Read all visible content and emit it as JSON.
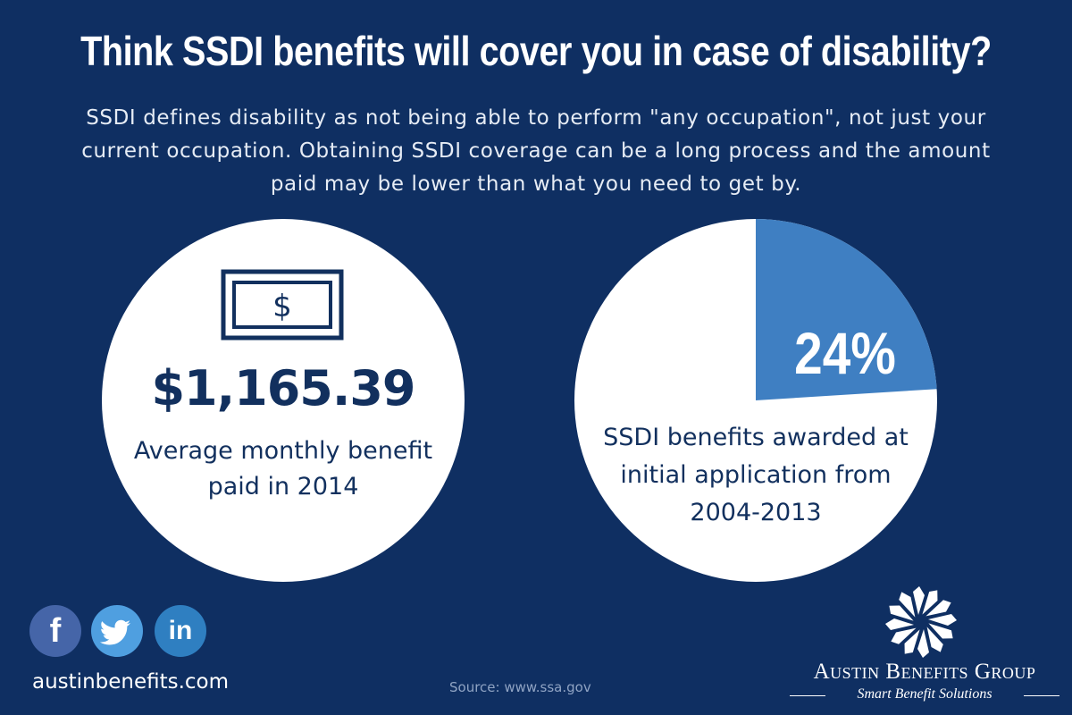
{
  "headline": "Think SSDI benefits will cover you in case of disability?",
  "subtext": "SSDI defines disability as not being able to perform \"any occupation\", not just your current occupation. Obtaining SSDI coverage can be a long process and the amount paid may be lower than what you need to get by.",
  "left_stat": {
    "icon": "dollar-bill-icon",
    "amount": "$1,165.39",
    "description": "Average monthly benefit paid in 2014"
  },
  "right_stat": {
    "percent_label": "24%",
    "percent_value": 24,
    "description": "SSDI benefits awarded at initial application from 2004-2013"
  },
  "social": {
    "facebook": "f",
    "twitter": "twitter-bird",
    "linkedin": "in"
  },
  "website": "austinbenefits.com",
  "source": "Source: www.ssa.gov",
  "company": {
    "name": "Austin Benefits Group",
    "tagline": "Smart Benefit Solutions"
  },
  "colors": {
    "background": "#0f2f62",
    "accent": "#3f7fc2",
    "text_dark": "#12305e"
  }
}
